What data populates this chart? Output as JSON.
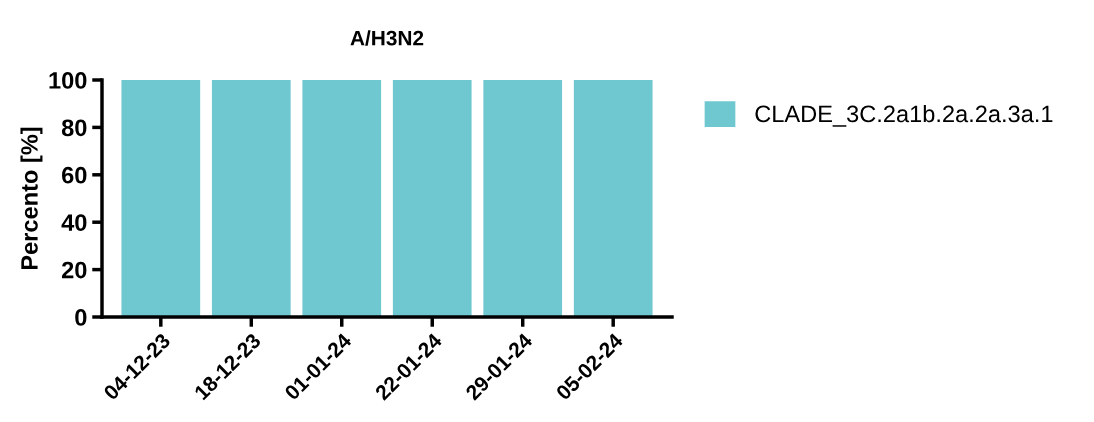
{
  "chart_data": {
    "type": "bar",
    "title": "A/H3N2",
    "ylabel": "Percento [%]",
    "categories": [
      "04-12-23",
      "18-12-23",
      "01-01-24",
      "22-01-24",
      "29-01-24",
      "05-02-24"
    ],
    "series": [
      {
        "name": "CLADE_3C.2a1b.2a.2a.3a.1",
        "color": "#6fc7d0",
        "values": [
          100,
          100,
          100,
          100,
          100,
          100
        ]
      }
    ],
    "ylim": [
      0,
      100
    ],
    "yticks": [
      0,
      20,
      40,
      60,
      80,
      100
    ],
    "grid": false,
    "legend": "top right"
  }
}
